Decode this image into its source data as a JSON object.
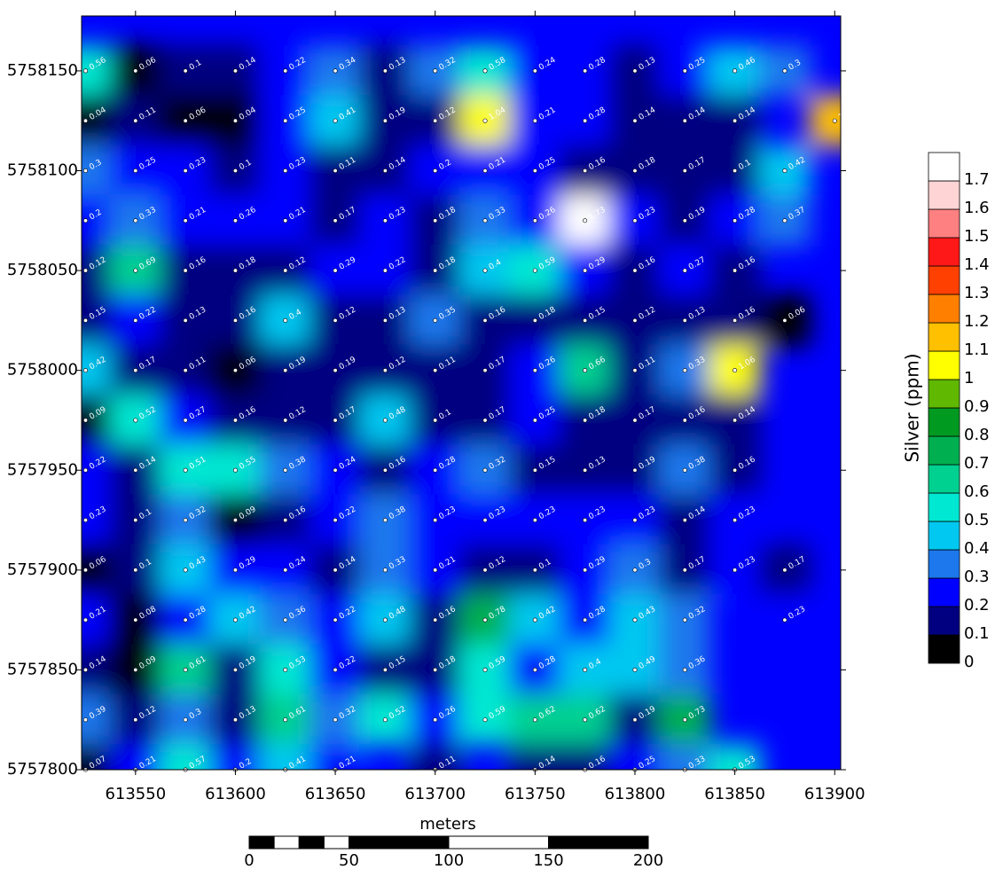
{
  "map": {
    "xlim": [
      613523,
      613903
    ],
    "ylim": [
      5757800,
      5758177.5
    ],
    "xticks": [
      613550,
      613600,
      613650,
      613700,
      613750,
      613800,
      613850,
      613900
    ],
    "yticks": [
      5757800,
      5757850,
      5757900,
      5757950,
      5758000,
      5758050,
      5758100,
      5758150
    ],
    "grid_x": [
      613525,
      613550,
      613575,
      613600,
      613625,
      613650,
      613675,
      613700,
      613725,
      613750,
      613775,
      613800,
      613825,
      613850,
      613875,
      613900
    ],
    "grid_y": [
      5758150,
      5758125,
      5758100,
      5758075,
      5758050,
      5758025,
      5758000,
      5757975,
      5757950,
      5757925,
      5757900,
      5757875,
      5757850,
      5757825,
      5757800
    ],
    "samples": [
      [
        0.56,
        0.06,
        0.1,
        0.14,
        0.22,
        0.34,
        0.13,
        0.32,
        0.58,
        0.24,
        0.28,
        0.13,
        0.25,
        0.46,
        0.3,
        null
      ],
      [
        0.04,
        0.11,
        0.06,
        0.04,
        0.25,
        0.41,
        0.19,
        0.12,
        1.04,
        0.21,
        0.28,
        0.14,
        0.14,
        0.14,
        null,
        1.16
      ],
      [
        0.3,
        0.25,
        0.23,
        0.1,
        0.23,
        0.11,
        0.14,
        0.2,
        0.21,
        0.25,
        0.16,
        0.18,
        0.17,
        0.1,
        0.42,
        null
      ],
      [
        0.2,
        0.33,
        0.21,
        0.26,
        0.21,
        0.17,
        0.23,
        0.18,
        0.33,
        0.26,
        1.73,
        0.23,
        0.19,
        0.28,
        0.37,
        null
      ],
      [
        0.12,
        0.69,
        0.16,
        0.18,
        0.12,
        0.29,
        0.22,
        0.18,
        0.4,
        0.59,
        0.29,
        0.16,
        0.27,
        0.16,
        null,
        null
      ],
      [
        0.15,
        0.22,
        0.13,
        0.16,
        0.4,
        0.12,
        0.13,
        0.35,
        0.16,
        0.18,
        0.15,
        0.12,
        0.13,
        0.16,
        0.06,
        null
      ],
      [
        0.42,
        0.17,
        0.11,
        0.06,
        0.19,
        0.19,
        0.12,
        0.11,
        0.17,
        0.26,
        0.66,
        0.11,
        0.33,
        1.06,
        null,
        null
      ],
      [
        0.09,
        0.52,
        0.27,
        0.16,
        0.12,
        0.17,
        0.48,
        0.1,
        0.17,
        0.25,
        0.18,
        0.17,
        0.16,
        0.14,
        null,
        null
      ],
      [
        0.22,
        0.14,
        0.51,
        0.55,
        0.38,
        0.24,
        0.16,
        0.28,
        0.32,
        0.15,
        0.13,
        0.19,
        0.38,
        0.16,
        null,
        null
      ],
      [
        0.23,
        0.1,
        0.32,
        0.09,
        0.16,
        0.22,
        0.38,
        0.23,
        0.23,
        0.23,
        0.23,
        0.23,
        0.14,
        0.23,
        null,
        null
      ],
      [
        0.06,
        0.1,
        0.43,
        0.29,
        0.24,
        0.14,
        0.33,
        0.21,
        0.12,
        0.1,
        0.29,
        0.3,
        0.17,
        0.23,
        0.17,
        null
      ],
      [
        0.21,
        0.08,
        0.28,
        0.42,
        0.36,
        0.22,
        0.48,
        0.16,
        0.78,
        0.42,
        0.28,
        0.43,
        0.32,
        null,
        0.23,
        null
      ],
      [
        0.14,
        0.09,
        0.61,
        0.19,
        0.53,
        0.22,
        0.15,
        0.18,
        0.59,
        0.28,
        0.4,
        0.49,
        0.36,
        null,
        null,
        null
      ],
      [
        0.39,
        0.12,
        0.3,
        0.13,
        0.61,
        0.32,
        0.52,
        0.26,
        0.59,
        0.62,
        0.62,
        0.19,
        0.73,
        null,
        null,
        null
      ],
      [
        0.07,
        0.21,
        0.57,
        0.2,
        0.41,
        0.21,
        null,
        0.11,
        null,
        0.14,
        0.16,
        0.25,
        0.33,
        0.53,
        null,
        null
      ]
    ]
  },
  "colorbar": {
    "title": "Silver (ppm)",
    "levels": [
      0,
      0.1,
      0.2,
      0.3,
      0.4,
      0.5,
      0.6,
      0.7,
      0.8,
      0.9,
      1,
      1.1,
      1.2,
      1.3,
      1.4,
      1.5,
      1.6,
      1.7,
      1.8
    ],
    "ticks": [
      0,
      0.1,
      0.2,
      0.3,
      0.4,
      0.5,
      0.6,
      0.7,
      0.8,
      0.9,
      1,
      1.1,
      1.2,
      1.3,
      1.4,
      1.5,
      1.6,
      1.7
    ],
    "colors": [
      "#000000",
      "#000080",
      "#0000ff",
      "#1c78ec",
      "#00c8f0",
      "#00e8d2",
      "#00d090",
      "#00b050",
      "#009a20",
      "#60b800",
      "#ffff00",
      "#ffc000",
      "#ff8000",
      "#ff4000",
      "#ff1818",
      "#ff8080",
      "#ffd4d4",
      "#ffffff"
    ]
  },
  "scale_bar": {
    "title": "meters",
    "ticks": [
      0,
      50,
      100,
      150,
      200
    ],
    "breaks": [
      0,
      12.5,
      25,
      37.5,
      50,
      100,
      150,
      200
    ]
  }
}
